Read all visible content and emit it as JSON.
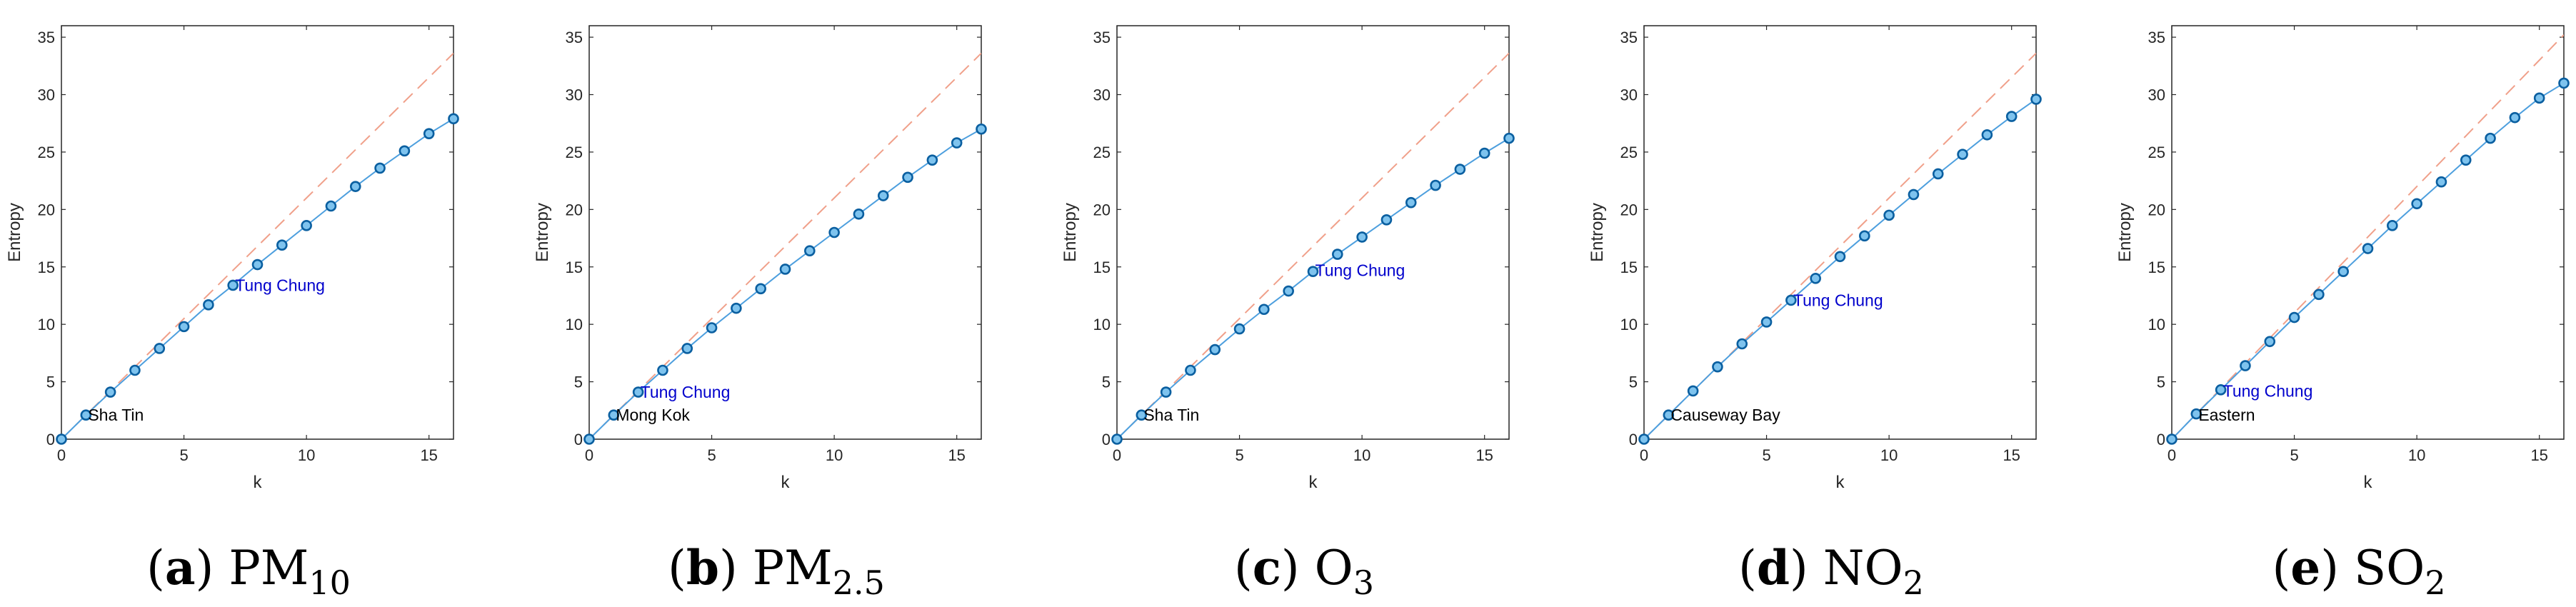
{
  "figure": {
    "panels": [
      {
        "caption": {
          "letter": "a",
          "base": "PM",
          "sub": "10"
        },
        "annotations": [
          {
            "text": "Sha Tin",
            "x": 1,
            "y": 2.1,
            "color": "#000000"
          },
          {
            "text": "Tung Chung",
            "x": 7,
            "y": 13.4,
            "color": "#0000cc"
          }
        ]
      },
      {
        "caption": {
          "letter": "b",
          "base": "PM",
          "sub": "2.5"
        },
        "annotations": [
          {
            "text": "Mong Kok",
            "x": 1,
            "y": 2.1,
            "color": "#000000"
          },
          {
            "text": "Tung Chung",
            "x": 2,
            "y": 4.1,
            "color": "#0000cc"
          }
        ]
      },
      {
        "caption": {
          "letter": "c",
          "base": "O",
          "sub": "3"
        },
        "annotations": [
          {
            "text": "Sha Tin",
            "x": 1,
            "y": 2.1,
            "color": "#000000"
          },
          {
            "text": "Tung Chung",
            "x": 8,
            "y": 14.7,
            "color": "#0000cc"
          }
        ]
      },
      {
        "caption": {
          "letter": "d",
          "base": "NO",
          "sub": "2"
        },
        "annotations": [
          {
            "text": "Causeway Bay",
            "x": 1,
            "y": 2.1,
            "color": "#000000"
          },
          {
            "text": "Tung Chung",
            "x": 6,
            "y": 12.1,
            "color": "#0000cc"
          }
        ]
      },
      {
        "caption": {
          "letter": "e",
          "base": "SO",
          "sub": "2"
        },
        "annotations": [
          {
            "text": "Eastern",
            "x": 1,
            "y": 2.1,
            "color": "#000000"
          },
          {
            "text": "Tung Chung",
            "x": 2,
            "y": 4.2,
            "color": "#0000cc"
          }
        ]
      }
    ]
  },
  "style": {
    "entropy_line_color": "#4d9fde",
    "marker_edge_color": "#0a5fa0",
    "reference_line_color": "#f0a08a"
  },
  "chart_data": [
    {
      "type": "line",
      "xlabel": "k",
      "ylabel": "Entropy",
      "xlim": [
        0,
        16
      ],
      "ylim": [
        0,
        36
      ],
      "xticks": [
        0,
        5,
        10,
        15
      ],
      "yticks": [
        0,
        5,
        10,
        15,
        20,
        25,
        30,
        35
      ],
      "grid": false,
      "x": [
        0,
        1,
        2,
        3,
        4,
        5,
        6,
        7,
        8,
        9,
        10,
        11,
        12,
        13,
        14,
        15,
        16
      ],
      "series": [
        {
          "values": [
            0,
            2.1,
            4.1,
            6.0,
            7.9,
            9.8,
            11.7,
            13.4,
            15.2,
            16.9,
            18.6,
            20.3,
            22.0,
            23.6,
            25.1,
            26.6,
            27.9
          ]
        },
        {
          "values": [
            0,
            2.1,
            4.2,
            6.3,
            8.4,
            10.5,
            12.6,
            14.7,
            16.8,
            18.9,
            21.0,
            23.1,
            25.2,
            27.3,
            29.4,
            31.5,
            33.6
          ],
          "style": "dashed"
        }
      ]
    },
    {
      "type": "line",
      "xlabel": "k",
      "ylabel": "Entropy",
      "xlim": [
        0,
        16
      ],
      "ylim": [
        0,
        36
      ],
      "xticks": [
        0,
        5,
        10,
        15
      ],
      "yticks": [
        0,
        5,
        10,
        15,
        20,
        25,
        30,
        35
      ],
      "grid": false,
      "x": [
        0,
        1,
        2,
        3,
        4,
        5,
        6,
        7,
        8,
        9,
        10,
        11,
        12,
        13,
        14,
        15,
        16
      ],
      "series": [
        {
          "values": [
            0,
            2.1,
            4.1,
            6.0,
            7.9,
            9.7,
            11.4,
            13.1,
            14.8,
            16.4,
            18.0,
            19.6,
            21.2,
            22.8,
            24.3,
            25.8,
            27.0
          ]
        },
        {
          "values": [
            0,
            2.1,
            4.2,
            6.3,
            8.4,
            10.5,
            12.6,
            14.7,
            16.8,
            18.9,
            21.0,
            23.1,
            25.2,
            27.3,
            29.4,
            31.5,
            33.6
          ],
          "style": "dashed"
        }
      ]
    },
    {
      "type": "line",
      "xlabel": "k",
      "ylabel": "Entropy",
      "xlim": [
        0,
        16
      ],
      "ylim": [
        0,
        36
      ],
      "xticks": [
        0,
        5,
        10,
        15
      ],
      "yticks": [
        0,
        5,
        10,
        15,
        20,
        25,
        30,
        35
      ],
      "grid": false,
      "x": [
        0,
        1,
        2,
        3,
        4,
        5,
        6,
        7,
        8,
        9,
        10,
        11,
        12,
        13,
        14,
        15,
        16
      ],
      "series": [
        {
          "values": [
            0,
            2.1,
            4.1,
            6.0,
            7.8,
            9.6,
            11.3,
            12.9,
            14.6,
            16.1,
            17.6,
            19.1,
            20.6,
            22.1,
            23.5,
            24.9,
            26.2
          ]
        },
        {
          "values": [
            0,
            2.1,
            4.2,
            6.3,
            8.4,
            10.5,
            12.6,
            14.7,
            16.8,
            18.9,
            21.0,
            23.1,
            25.2,
            27.3,
            29.4,
            31.5,
            33.6
          ],
          "style": "dashed"
        }
      ]
    },
    {
      "type": "line",
      "xlabel": "k",
      "ylabel": "Entropy",
      "xlim": [
        0,
        16
      ],
      "ylim": [
        0,
        36
      ],
      "xticks": [
        0,
        5,
        10,
        15
      ],
      "yticks": [
        0,
        5,
        10,
        15,
        20,
        25,
        30,
        35
      ],
      "grid": false,
      "x": [
        0,
        1,
        2,
        3,
        4,
        5,
        6,
        7,
        8,
        9,
        10,
        11,
        12,
        13,
        14,
        15,
        16
      ],
      "series": [
        {
          "values": [
            0,
            2.1,
            4.2,
            6.3,
            8.3,
            10.2,
            12.1,
            14.0,
            15.9,
            17.7,
            19.5,
            21.3,
            23.1,
            24.8,
            26.5,
            28.1,
            29.6
          ]
        },
        {
          "values": [
            0,
            2.1,
            4.2,
            6.3,
            8.4,
            10.5,
            12.6,
            14.7,
            16.8,
            18.9,
            21.0,
            23.1,
            25.2,
            27.3,
            29.4,
            31.5,
            33.6
          ],
          "style": "dashed"
        }
      ]
    },
    {
      "type": "line",
      "xlabel": "k",
      "ylabel": "Entropy",
      "xlim": [
        0,
        16
      ],
      "ylim": [
        0,
        36
      ],
      "xticks": [
        0,
        5,
        10,
        15
      ],
      "yticks": [
        0,
        5,
        10,
        15,
        20,
        25,
        30,
        35
      ],
      "grid": false,
      "x": [
        0,
        1,
        2,
        3,
        4,
        5,
        6,
        7,
        8,
        9,
        10,
        11,
        12,
        13,
        14,
        15,
        16
      ],
      "series": [
        {
          "values": [
            0,
            2.2,
            4.3,
            6.4,
            8.5,
            10.6,
            12.6,
            14.6,
            16.6,
            18.6,
            20.5,
            22.4,
            24.3,
            26.2,
            28.0,
            29.7,
            31.0
          ]
        },
        {
          "values": [
            0,
            2.2,
            4.4,
            6.6,
            8.8,
            11.0,
            13.2,
            15.4,
            17.6,
            19.8,
            22.0,
            24.2,
            26.4,
            28.6,
            30.8,
            33.0,
            35.2
          ],
          "style": "dashed"
        }
      ]
    }
  ]
}
